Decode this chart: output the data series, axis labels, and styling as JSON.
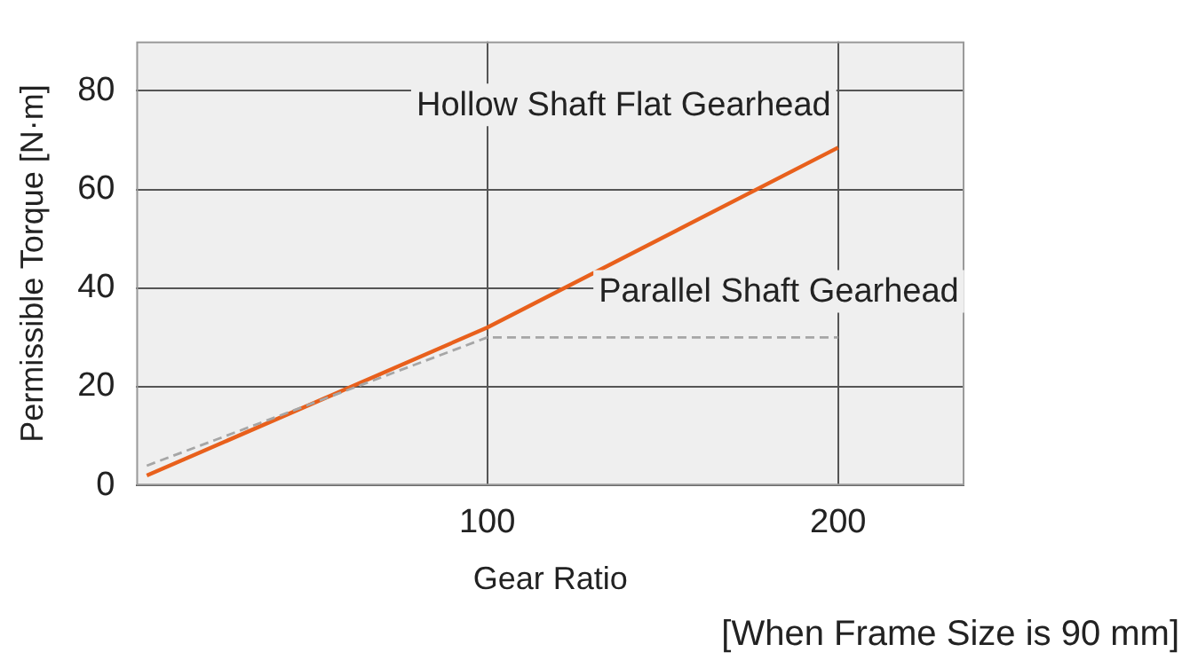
{
  "chart_data": {
    "type": "line",
    "xlabel": "Gear Ratio",
    "ylabel": "Permissible Torque [N·m]",
    "x": [
      3,
      100,
      200
    ],
    "series": [
      {
        "name": "Hollow Shaft Flat Gearhead",
        "color": "#e8601c",
        "values": [
          2,
          32,
          68.5
        ],
        "line_style": "solid"
      },
      {
        "name": "Parallel Shaft Gearhead",
        "color": "#a6a6a6",
        "values": [
          4,
          30,
          30
        ],
        "line_style": "dashed"
      }
    ],
    "xlim": [
      0,
      236
    ],
    "xticks": [
      100,
      200
    ],
    "ylim": [
      0,
      90
    ],
    "yticks": [
      0,
      20,
      40,
      60,
      80
    ],
    "grid": true,
    "legend": false,
    "marker": "none",
    "annotations": [
      "[When Frame Size is 90 mm]"
    ]
  }
}
